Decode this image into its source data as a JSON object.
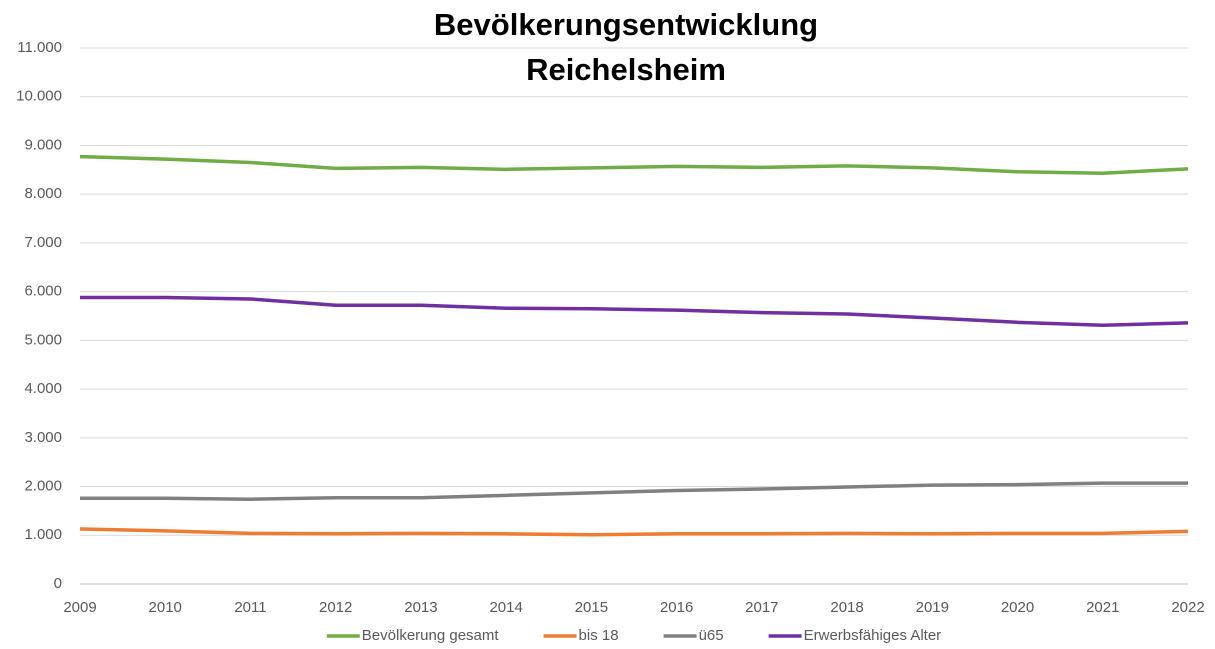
{
  "chart_data": {
    "type": "line",
    "title": [
      "Bevölkerungsentwicklung",
      "Reichelsheim"
    ],
    "categories": [
      "2009",
      "2010",
      "2011",
      "2012",
      "2013",
      "2014",
      "2015",
      "2016",
      "2017",
      "2018",
      "2019",
      "2020",
      "2021",
      "2022"
    ],
    "series": [
      {
        "name": "Bevölkerung gesamt",
        "color": "#70ad47",
        "values": [
          8770,
          8720,
          8650,
          8530,
          8550,
          8510,
          8540,
          8570,
          8550,
          8580,
          8540,
          8460,
          8430,
          8520
        ]
      },
      {
        "name": "bis 18",
        "color": "#ed7d31",
        "values": [
          1130,
          1090,
          1040,
          1030,
          1040,
          1030,
          1010,
          1030,
          1030,
          1040,
          1030,
          1040,
          1040,
          1080
        ]
      },
      {
        "name": "ü65",
        "color": "#808080",
        "values": [
          1760,
          1760,
          1740,
          1770,
          1770,
          1820,
          1870,
          1920,
          1950,
          1990,
          2030,
          2040,
          2070,
          2070
        ]
      },
      {
        "name": "Erwerbsfähiges Alter",
        "color": "#7030a0",
        "values": [
          5880,
          5880,
          5850,
          5720,
          5720,
          5660,
          5650,
          5620,
          5570,
          5540,
          5460,
          5370,
          5310,
          5360
        ]
      }
    ],
    "ylim": [
      0,
      11000
    ],
    "yticks": [
      0,
      {
        "value": 1000,
        "label": "1.000"
      },
      {
        "value": 2000,
        "label": "2.000"
      },
      {
        "value": 3000,
        "label": "3.000"
      },
      {
        "value": 4000,
        "label": "4.000"
      },
      {
        "value": 5000,
        "label": "5.000"
      },
      {
        "value": 6000,
        "label": "6.000"
      },
      {
        "value": 7000,
        "label": "7.000"
      },
      {
        "value": 8000,
        "label": "8.000"
      },
      {
        "value": 9000,
        "label": "9.000"
      },
      {
        "value": 10000,
        "label": "10.000"
      },
      {
        "value": 11000,
        "label": "11.000"
      }
    ],
    "grid": true,
    "legend": "bottom"
  }
}
